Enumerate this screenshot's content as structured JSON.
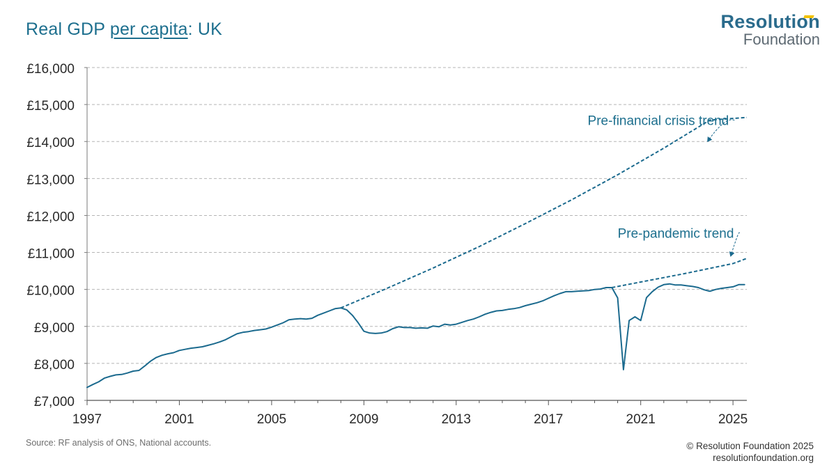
{
  "header": {
    "title_prefix": "Real GDP ",
    "title_emphasis": "per capita",
    "title_suffix": ": UK"
  },
  "logo": {
    "primary": "Resolution",
    "secondary": "Foundation"
  },
  "footer": {
    "source": "Source: RF analysis of ONS, National accounts.",
    "copyright": "© Resolution Foundation 2025",
    "website": "resolutionfoundation.org"
  },
  "colors": {
    "series": "#1b6a8e",
    "grid": "#b5b5b5",
    "text": "#1d6f8e"
  },
  "chart_data": {
    "type": "line",
    "title": "Real GDP per capita: UK",
    "xlabel": "",
    "ylabel": "",
    "xlim": [
      1997,
      2025.6
    ],
    "ylim": [
      7000,
      16000
    ],
    "x_ticks": [
      1997,
      2001,
      2005,
      2009,
      2013,
      2017,
      2021,
      2025
    ],
    "x_tick_labels": [
      "1997",
      "2001",
      "2005",
      "2009",
      "2013",
      "2017",
      "2021",
      "2025"
    ],
    "y_ticks": [
      7000,
      8000,
      9000,
      10000,
      11000,
      12000,
      13000,
      14000,
      15000,
      16000
    ],
    "y_tick_labels": [
      "£7,000",
      "£8,000",
      "£9,000",
      "£10,000",
      "£11,000",
      "£12,000",
      "£13,000",
      "£14,000",
      "£15,000",
      "£16,000"
    ],
    "grid": "horizontal dashed",
    "series": [
      {
        "name": "Real GDP per capita",
        "style": "solid",
        "points": [
          [
            1997.0,
            7350
          ],
          [
            1997.25,
            7430
          ],
          [
            1997.5,
            7500
          ],
          [
            1997.75,
            7600
          ],
          [
            1998.0,
            7650
          ],
          [
            1998.25,
            7690
          ],
          [
            1998.5,
            7700
          ],
          [
            1998.75,
            7740
          ],
          [
            1999.0,
            7790
          ],
          [
            1999.25,
            7810
          ],
          [
            1999.5,
            7930
          ],
          [
            1999.75,
            8060
          ],
          [
            2000.0,
            8160
          ],
          [
            2000.25,
            8220
          ],
          [
            2000.5,
            8260
          ],
          [
            2000.75,
            8290
          ],
          [
            2001.0,
            8350
          ],
          [
            2001.25,
            8380
          ],
          [
            2001.5,
            8410
          ],
          [
            2001.75,
            8430
          ],
          [
            2002.0,
            8450
          ],
          [
            2002.25,
            8490
          ],
          [
            2002.5,
            8530
          ],
          [
            2002.75,
            8580
          ],
          [
            2003.0,
            8640
          ],
          [
            2003.25,
            8720
          ],
          [
            2003.5,
            8800
          ],
          [
            2003.75,
            8840
          ],
          [
            2004.0,
            8860
          ],
          [
            2004.25,
            8890
          ],
          [
            2004.5,
            8910
          ],
          [
            2004.75,
            8930
          ],
          [
            2005.0,
            8980
          ],
          [
            2005.25,
            9040
          ],
          [
            2005.5,
            9100
          ],
          [
            2005.75,
            9180
          ],
          [
            2006.0,
            9200
          ],
          [
            2006.25,
            9210
          ],
          [
            2006.5,
            9200
          ],
          [
            2006.75,
            9220
          ],
          [
            2007.0,
            9300
          ],
          [
            2007.25,
            9360
          ],
          [
            2007.5,
            9420
          ],
          [
            2007.75,
            9480
          ],
          [
            2008.0,
            9500
          ],
          [
            2008.25,
            9450
          ],
          [
            2008.5,
            9300
          ],
          [
            2008.75,
            9100
          ],
          [
            2009.0,
            8870
          ],
          [
            2009.25,
            8820
          ],
          [
            2009.5,
            8810
          ],
          [
            2009.75,
            8820
          ],
          [
            2010.0,
            8860
          ],
          [
            2010.25,
            8940
          ],
          [
            2010.5,
            8990
          ],
          [
            2010.75,
            8970
          ],
          [
            2011.0,
            8970
          ],
          [
            2011.25,
            8950
          ],
          [
            2011.5,
            8960
          ],
          [
            2011.75,
            8950
          ],
          [
            2012.0,
            9010
          ],
          [
            2012.25,
            8990
          ],
          [
            2012.5,
            9060
          ],
          [
            2012.75,
            9040
          ],
          [
            2013.0,
            9060
          ],
          [
            2013.25,
            9110
          ],
          [
            2013.5,
            9160
          ],
          [
            2013.75,
            9200
          ],
          [
            2014.0,
            9260
          ],
          [
            2014.25,
            9330
          ],
          [
            2014.5,
            9380
          ],
          [
            2014.75,
            9420
          ],
          [
            2015.0,
            9430
          ],
          [
            2015.25,
            9460
          ],
          [
            2015.5,
            9480
          ],
          [
            2015.75,
            9510
          ],
          [
            2016.0,
            9560
          ],
          [
            2016.25,
            9600
          ],
          [
            2016.5,
            9640
          ],
          [
            2016.75,
            9690
          ],
          [
            2017.0,
            9760
          ],
          [
            2017.25,
            9830
          ],
          [
            2017.5,
            9890
          ],
          [
            2017.75,
            9940
          ],
          [
            2018.0,
            9940
          ],
          [
            2018.25,
            9950
          ],
          [
            2018.5,
            9960
          ],
          [
            2018.75,
            9970
          ],
          [
            2019.0,
            10000
          ],
          [
            2019.25,
            10010
          ],
          [
            2019.5,
            10050
          ],
          [
            2019.75,
            10050
          ],
          [
            2020.0,
            9770
          ],
          [
            2020.25,
            7830
          ],
          [
            2020.5,
            9160
          ],
          [
            2020.75,
            9260
          ],
          [
            2021.0,
            9160
          ],
          [
            2021.25,
            9780
          ],
          [
            2021.5,
            9940
          ],
          [
            2021.75,
            10060
          ],
          [
            2022.0,
            10130
          ],
          [
            2022.25,
            10150
          ],
          [
            2022.5,
            10120
          ],
          [
            2022.75,
            10120
          ],
          [
            2023.0,
            10100
          ],
          [
            2023.25,
            10080
          ],
          [
            2023.5,
            10050
          ],
          [
            2023.75,
            9990
          ],
          [
            2024.0,
            9950
          ],
          [
            2024.25,
            10000
          ],
          [
            2024.5,
            10030
          ],
          [
            2024.75,
            10050
          ],
          [
            2025.0,
            10070
          ],
          [
            2025.25,
            10130
          ],
          [
            2025.5,
            10130
          ]
        ]
      },
      {
        "name": "Pre-financial crisis trend",
        "style": "dashed",
        "points": [
          [
            2008.0,
            9500
          ],
          [
            2010.0,
            10030
          ],
          [
            2012.0,
            10580
          ],
          [
            2014.0,
            11160
          ],
          [
            2016.0,
            11780
          ],
          [
            2018.0,
            12420
          ],
          [
            2020.0,
            13100
          ],
          [
            2022.0,
            13820
          ],
          [
            2024.0,
            14580
          ],
          [
            2025.6,
            14650
          ]
        ]
      },
      {
        "name": "Pre-pandemic trend",
        "style": "dashed",
        "points": [
          [
            2019.75,
            10050
          ],
          [
            2021.0,
            10200
          ],
          [
            2022.0,
            10320
          ],
          [
            2023.0,
            10440
          ],
          [
            2024.0,
            10570
          ],
          [
            2025.0,
            10700
          ],
          [
            2025.6,
            10840
          ]
        ]
      }
    ],
    "annotations": [
      {
        "text": "Pre-financial crisis trend",
        "x": 2018.7,
        "y": 14450,
        "points_to": [
          2023.9,
          14000
        ]
      },
      {
        "text": "Pre-pandemic trend",
        "x": 2020.0,
        "y": 11400,
        "points_to": [
          2024.9,
          10900
        ]
      }
    ]
  }
}
